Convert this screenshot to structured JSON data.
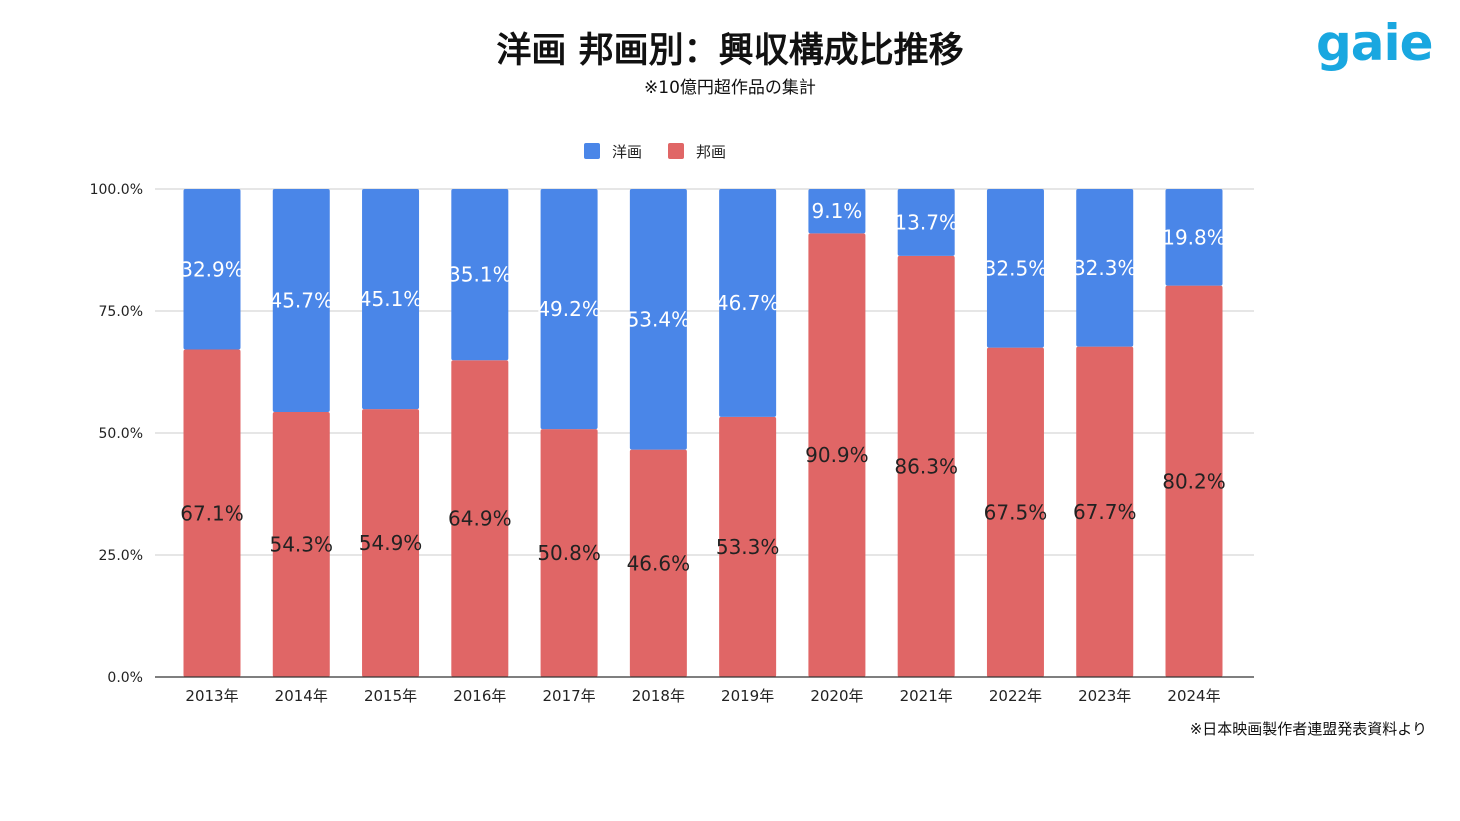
{
  "title": "洋画 邦画別：興収構成比推移",
  "subtitle": "※10億円超作品の集計",
  "logo": "gaie",
  "source_note": "※日本映画製作者連盟発表資料より",
  "chart_data": {
    "type": "bar",
    "stacked": true,
    "categories": [
      "2013年",
      "2014年",
      "2015年",
      "2016年",
      "2017年",
      "2018年",
      "2019年",
      "2020年",
      "2021年",
      "2022年",
      "2023年",
      "2024年"
    ],
    "series": [
      {
        "name": "邦画",
        "color": "#e06666",
        "values": [
          67.1,
          54.3,
          54.9,
          64.9,
          50.8,
          46.6,
          53.3,
          90.9,
          86.3,
          67.5,
          67.7,
          80.2
        ],
        "label_color": "#222222"
      },
      {
        "name": "洋画",
        "color": "#4a86e8",
        "values": [
          32.9,
          45.7,
          45.1,
          35.1,
          49.2,
          53.4,
          46.7,
          9.1,
          13.7,
          32.5,
          32.3,
          19.8
        ],
        "label_color": "#ffffff"
      }
    ],
    "legend": {
      "entries": [
        "洋画",
        "邦画"
      ],
      "placement": "top"
    },
    "ylim": [
      0,
      100
    ],
    "yticks": [
      "0.0%",
      "25.0%",
      "50.0%",
      "75.0%",
      "100.0%"
    ],
    "ytick_values": [
      0,
      25,
      50,
      75,
      100
    ],
    "grid": true,
    "data_labels": true,
    "xlabel": "",
    "ylabel": ""
  }
}
